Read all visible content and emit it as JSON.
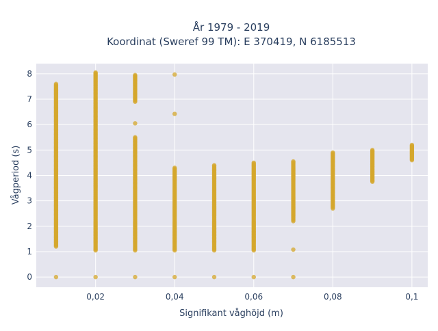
{
  "chart_data": {
    "type": "scatter",
    "title": [
      "År 1979 - 2019",
      "Koordinat (Sweref 99 TM): E 370419, N 6185513"
    ],
    "xlabel": "Signifikant våghöjd (m)",
    "ylabel": "Vågperiod (s)",
    "xlim": [
      0.005,
      0.104
    ],
    "ylim": [
      -0.4,
      8.4
    ],
    "x_ticks": [
      0.02,
      0.04,
      0.06,
      0.08,
      0.1
    ],
    "x_tick_labels": [
      "0,02",
      "0,04",
      "0,06",
      "0,08",
      "0,1"
    ],
    "y_ticks": [
      0,
      1,
      2,
      3,
      4,
      5,
      6,
      7,
      8
    ],
    "y_tick_labels": [
      "0",
      "1",
      "2",
      "3",
      "4",
      "5",
      "6",
      "7",
      "8"
    ],
    "grid": true,
    "legend": "none",
    "marker_color": "#d4a72c",
    "background_color": "#e5e5ee",
    "series": [
      {
        "points": [
          {
            "x": 0.01,
            "y": 0
          },
          {
            "x": 0.01,
            "y": 1.2
          },
          {
            "x": 0.01,
            "y": 1.5
          },
          {
            "x": 0.01,
            "y": 1.8
          },
          {
            "x": 0.01,
            "y": 2.1
          },
          {
            "x": 0.01,
            "y": 2.4
          },
          {
            "x": 0.01,
            "y": 2.7
          },
          {
            "x": 0.01,
            "y": 3.0
          },
          {
            "x": 0.01,
            "y": 3.3
          },
          {
            "x": 0.01,
            "y": 3.6
          },
          {
            "x": 0.01,
            "y": 3.9
          },
          {
            "x": 0.01,
            "y": 4.2
          },
          {
            "x": 0.01,
            "y": 4.5
          },
          {
            "x": 0.01,
            "y": 4.8
          },
          {
            "x": 0.01,
            "y": 5.1
          },
          {
            "x": 0.01,
            "y": 5.4
          },
          {
            "x": 0.01,
            "y": 5.7
          },
          {
            "x": 0.01,
            "y": 6.0
          },
          {
            "x": 0.01,
            "y": 6.3
          },
          {
            "x": 0.01,
            "y": 6.6
          },
          {
            "x": 0.01,
            "y": 6.9
          },
          {
            "x": 0.01,
            "y": 7.2
          },
          {
            "x": 0.01,
            "y": 7.4
          },
          {
            "x": 0.01,
            "y": 7.6
          },
          {
            "x": 0.02,
            "y": 0
          },
          {
            "x": 0.02,
            "y": 1.05
          },
          {
            "x": 0.02,
            "y": 1.4
          },
          {
            "x": 0.02,
            "y": 1.8
          },
          {
            "x": 0.02,
            "y": 2.2
          },
          {
            "x": 0.02,
            "y": 2.6
          },
          {
            "x": 0.02,
            "y": 3.0
          },
          {
            "x": 0.02,
            "y": 3.4
          },
          {
            "x": 0.02,
            "y": 3.75
          },
          {
            "x": 0.02,
            "y": 4.05
          },
          {
            "x": 0.02,
            "y": 4.3
          },
          {
            "x": 0.02,
            "y": 4.6
          },
          {
            "x": 0.02,
            "y": 4.9
          },
          {
            "x": 0.02,
            "y": 5.2
          },
          {
            "x": 0.02,
            "y": 5.5
          },
          {
            "x": 0.02,
            "y": 5.8
          },
          {
            "x": 0.02,
            "y": 6.1
          },
          {
            "x": 0.02,
            "y": 6.4
          },
          {
            "x": 0.02,
            "y": 6.7
          },
          {
            "x": 0.02,
            "y": 7.0
          },
          {
            "x": 0.02,
            "y": 7.3
          },
          {
            "x": 0.02,
            "y": 7.6
          },
          {
            "x": 0.02,
            "y": 7.85
          },
          {
            "x": 0.02,
            "y": 8.05
          },
          {
            "x": 0.03,
            "y": 0
          },
          {
            "x": 0.03,
            "y": 1.05
          },
          {
            "x": 0.03,
            "y": 1.4
          },
          {
            "x": 0.03,
            "y": 1.8
          },
          {
            "x": 0.03,
            "y": 2.2
          },
          {
            "x": 0.03,
            "y": 2.6
          },
          {
            "x": 0.03,
            "y": 3.0
          },
          {
            "x": 0.03,
            "y": 3.4
          },
          {
            "x": 0.03,
            "y": 3.7
          },
          {
            "x": 0.03,
            "y": 4.0
          },
          {
            "x": 0.03,
            "y": 4.45
          },
          {
            "x": 0.03,
            "y": 4.9
          },
          {
            "x": 0.03,
            "y": 5.0
          },
          {
            "x": 0.03,
            "y": 5.4
          },
          {
            "x": 0.03,
            "y": 5.5
          },
          {
            "x": 0.03,
            "y": 6.05
          },
          {
            "x": 0.03,
            "y": 6.9
          },
          {
            "x": 0.03,
            "y": 7.2
          },
          {
            "x": 0.03,
            "y": 7.5
          },
          {
            "x": 0.03,
            "y": 7.75
          },
          {
            "x": 0.03,
            "y": 7.95
          },
          {
            "x": 0.04,
            "y": 0
          },
          {
            "x": 0.04,
            "y": 1.05
          },
          {
            "x": 0.04,
            "y": 1.4
          },
          {
            "x": 0.04,
            "y": 1.8
          },
          {
            "x": 0.04,
            "y": 2.2
          },
          {
            "x": 0.04,
            "y": 2.6
          },
          {
            "x": 0.04,
            "y": 3.0
          },
          {
            "x": 0.04,
            "y": 3.4
          },
          {
            "x": 0.04,
            "y": 3.8
          },
          {
            "x": 0.04,
            "y": 4.05
          },
          {
            "x": 0.04,
            "y": 4.3
          },
          {
            "x": 0.04,
            "y": 6.42
          },
          {
            "x": 0.04,
            "y": 7.97
          },
          {
            "x": 0.05,
            "y": 0
          },
          {
            "x": 0.05,
            "y": 1.05
          },
          {
            "x": 0.05,
            "y": 1.4
          },
          {
            "x": 0.05,
            "y": 1.8
          },
          {
            "x": 0.05,
            "y": 2.2
          },
          {
            "x": 0.05,
            "y": 2.6
          },
          {
            "x": 0.05,
            "y": 3.0
          },
          {
            "x": 0.05,
            "y": 3.4
          },
          {
            "x": 0.05,
            "y": 3.8
          },
          {
            "x": 0.05,
            "y": 4.1
          },
          {
            "x": 0.05,
            "y": 4.4
          },
          {
            "x": 0.06,
            "y": 0
          },
          {
            "x": 0.06,
            "y": 1.05
          },
          {
            "x": 0.06,
            "y": 1.48
          },
          {
            "x": 0.06,
            "y": 1.8
          },
          {
            "x": 0.06,
            "y": 2.2
          },
          {
            "x": 0.06,
            "y": 2.6
          },
          {
            "x": 0.06,
            "y": 3.0
          },
          {
            "x": 0.06,
            "y": 3.4
          },
          {
            "x": 0.06,
            "y": 3.8
          },
          {
            "x": 0.06,
            "y": 4.2
          },
          {
            "x": 0.06,
            "y": 4.5
          },
          {
            "x": 0.07,
            "y": 0
          },
          {
            "x": 0.07,
            "y": 1.08
          },
          {
            "x": 0.07,
            "y": 2.2
          },
          {
            "x": 0.07,
            "y": 2.6
          },
          {
            "x": 0.07,
            "y": 3.0
          },
          {
            "x": 0.07,
            "y": 3.4
          },
          {
            "x": 0.07,
            "y": 3.8
          },
          {
            "x": 0.07,
            "y": 4.2
          },
          {
            "x": 0.07,
            "y": 4.55
          },
          {
            "x": 0.08,
            "y": 2.7
          },
          {
            "x": 0.08,
            "y": 3.0
          },
          {
            "x": 0.08,
            "y": 3.3
          },
          {
            "x": 0.08,
            "y": 3.6
          },
          {
            "x": 0.08,
            "y": 3.9
          },
          {
            "x": 0.08,
            "y": 4.2
          },
          {
            "x": 0.08,
            "y": 4.5
          },
          {
            "x": 0.08,
            "y": 4.7
          },
          {
            "x": 0.08,
            "y": 4.9
          },
          {
            "x": 0.09,
            "y": 3.75
          },
          {
            "x": 0.09,
            "y": 4.0
          },
          {
            "x": 0.09,
            "y": 4.25
          },
          {
            "x": 0.09,
            "y": 4.5
          },
          {
            "x": 0.09,
            "y": 4.75
          },
          {
            "x": 0.09,
            "y": 5.0
          },
          {
            "x": 0.1,
            "y": 4.6
          },
          {
            "x": 0.1,
            "y": 4.8
          },
          {
            "x": 0.1,
            "y": 5.0
          },
          {
            "x": 0.1,
            "y": 5.2
          }
        ]
      }
    ]
  }
}
